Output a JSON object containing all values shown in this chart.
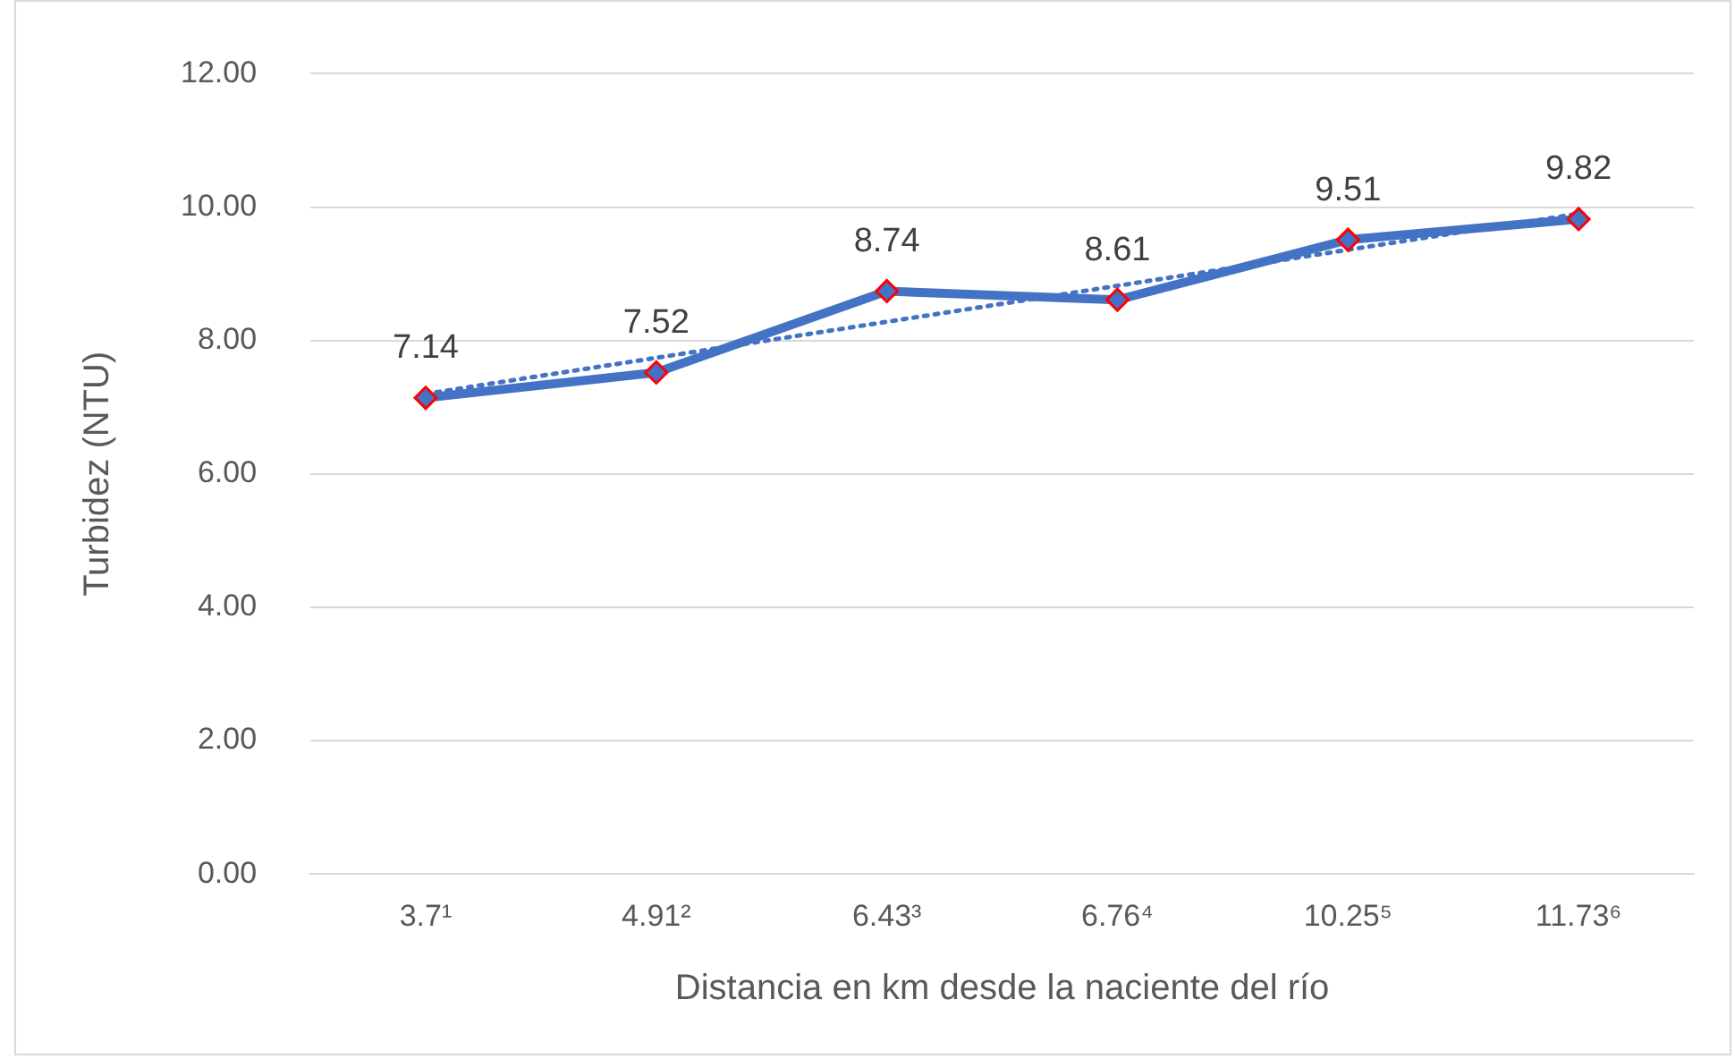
{
  "chart_data": {
    "type": "line",
    "xlabel": "Distancia en km desde la naciente del río",
    "ylabel": "Turbidez (NTU)",
    "categories": [
      "3.7¹",
      "4.91²",
      "6.43³",
      "6.76⁴",
      "10.25⁵",
      "11.73⁶"
    ],
    "series": [
      {
        "color": "#4472c4",
        "values": [
          7.14,
          7.52,
          8.74,
          8.61,
          9.51,
          9.82
        ],
        "value_labels": [
          "7.14",
          "7.52",
          "8.74",
          "8.61",
          "9.51",
          "9.82"
        ],
        "marker": "diamond",
        "line_style": "solid"
      },
      {
        "type": "line",
        "x": [
          "3.7¹",
          "11.73⁶"
        ],
        "values": [
          7.2,
          9.9
        ],
        "color": "#4472c4",
        "marker": "none",
        "line_style": "dotted"
      }
    ],
    "ylim": [
      0,
      12
    ],
    "yticks": [
      {
        "value": 0,
        "label": "0.00"
      },
      {
        "value": 2,
        "label": "2.00"
      },
      {
        "value": 4,
        "label": "4.00"
      },
      {
        "value": 6,
        "label": "6.00"
      },
      {
        "value": 8,
        "label": "8.00"
      },
      {
        "value": 10,
        "label": "10.00"
      },
      {
        "value": 12,
        "label": "12.00"
      }
    ],
    "grid": "y",
    "legend": false
  }
}
